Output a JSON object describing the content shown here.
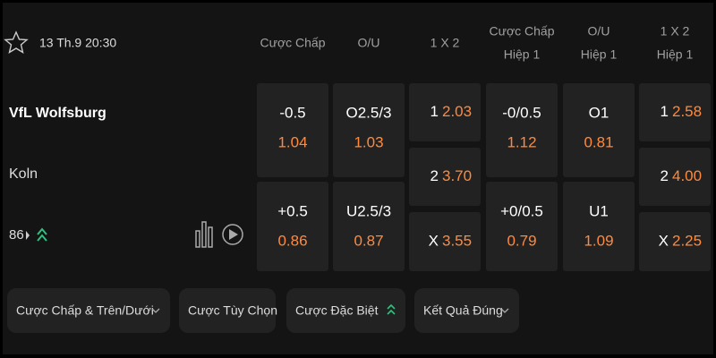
{
  "match": {
    "date": "13 Th.9 20:30",
    "home": "VfL Wolfsburg",
    "away": "Koln",
    "more_count": "86"
  },
  "markets": [
    {
      "header": [
        "Cược Chấp"
      ],
      "selections": [
        {
          "line": "-0.5",
          "odds": "1.04"
        },
        {
          "line": "+0.5",
          "odds": "0.86"
        }
      ]
    },
    {
      "header": [
        "O/U"
      ],
      "selections": [
        {
          "line": "O2.5/3",
          "odds": "1.03"
        },
        {
          "line": "U2.5/3",
          "odds": "0.87"
        }
      ]
    },
    {
      "header": [
        "1 X 2"
      ],
      "selections": [
        {
          "line": "1",
          "odds": "2.03"
        },
        {
          "line": "2",
          "odds": "3.70"
        },
        {
          "line": "X",
          "odds": "3.55"
        }
      ]
    },
    {
      "header": [
        "Cược Chấp",
        "Hiệp 1"
      ],
      "selections": [
        {
          "line": "-0/0.5",
          "odds": "1.12"
        },
        {
          "line": "+0/0.5",
          "odds": "0.79"
        }
      ]
    },
    {
      "header": [
        "O/U",
        "Hiệp 1"
      ],
      "selections": [
        {
          "line": "O1",
          "odds": "0.81"
        },
        {
          "line": "U1",
          "odds": "1.09"
        }
      ]
    },
    {
      "header": [
        "1 X 2",
        "Hiệp 1"
      ],
      "selections": [
        {
          "line": "1",
          "odds": "2.58"
        },
        {
          "line": "2",
          "odds": "4.00"
        },
        {
          "line": "X",
          "odds": "2.25"
        }
      ]
    }
  ],
  "tabs": [
    "Cược Chấp & Trên/Dưới",
    "Cược Tùy Chọn",
    "Cược Đặc Biệt",
    "Kết Quả Đúng"
  ]
}
